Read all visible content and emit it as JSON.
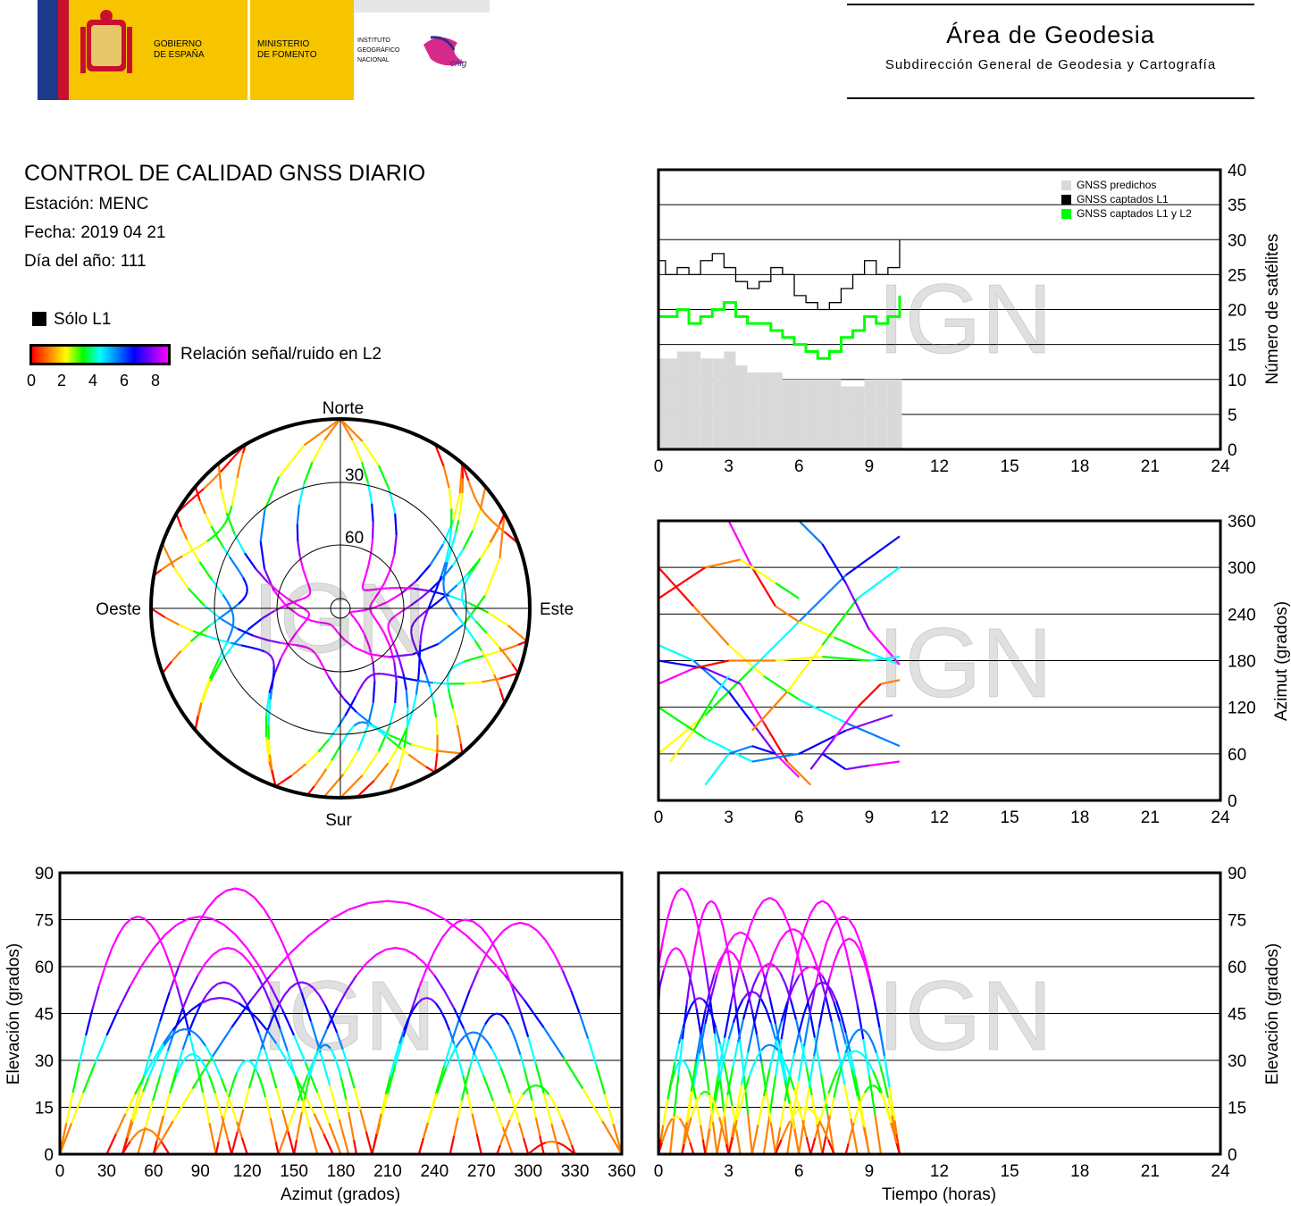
{
  "header": {
    "gov_line1": "GOBIERNO",
    "gov_line2": "DE ESPAÑA",
    "min_line1": "MINISTERIO",
    "min_line2": "DE FOMENTO",
    "ign_line1": "INSTITUTO",
    "ign_line2": "GEOGRÁFICO",
    "ign_line3": "NACIONAL",
    "cnig": "cnig",
    "title": "Área de Geodesia",
    "subtitle": "Subdirección General de Geodesia y Cartografía"
  },
  "info": {
    "title": "CONTROL DE CALIDAD GNSS DIARIO",
    "station": "Estación: MENC",
    "date": "Fecha: 2019 04 21",
    "doy": "Día del año: 111",
    "legend_l1": "Sólo L1",
    "colorbar_label": "Relación señal/ruido en L2",
    "colorbar_ticks": [
      "0",
      "2",
      "4",
      "6",
      "8"
    ]
  },
  "watermark": "IGN",
  "colors": {
    "predicted": "#d9d9d9",
    "l1": "#000000",
    "l1l2": "#00ff00",
    "snr_scale": [
      "#ff0000",
      "#ff8000",
      "#ffff00",
      "#00ff00",
      "#00ffff",
      "#0080ff",
      "#0000ff",
      "#8000ff",
      "#ff00ff"
    ]
  },
  "chart_data": [
    {
      "id": "satellites",
      "type": "line",
      "xlim": [
        0,
        24
      ],
      "ylim": [
        0,
        40
      ],
      "x_ticks": [
        "0",
        "3",
        "6",
        "9",
        "12",
        "15",
        "18",
        "21",
        "24"
      ],
      "y_ticks": [
        "0",
        "5",
        "10",
        "15",
        "20",
        "25",
        "30",
        "35",
        "40"
      ],
      "ylabel": "Número de satélites",
      "legend": [
        "GNSS predichos",
        "GNSS captados L1",
        "GNSS captados L1 y L2"
      ],
      "series": [
        {
          "name": "GNSS predichos",
          "x": [
            0,
            0.3,
            0.8,
            1.3,
            1.8,
            2.3,
            2.8,
            3.3,
            3.8,
            4.3,
            4.8,
            5.3,
            5.8,
            6.3,
            6.8,
            7.3,
            7.8,
            8.3,
            8.8,
            9.3,
            9.8,
            10.3
          ],
          "values": [
            13,
            13,
            14,
            14,
            13,
            13,
            14,
            12,
            11,
            11,
            11,
            10,
            10,
            10,
            10,
            10,
            9,
            9,
            10,
            10,
            10,
            10
          ]
        },
        {
          "name": "GNSS captados L1",
          "x": [
            0,
            0.3,
            0.8,
            1.3,
            1.8,
            2.3,
            2.8,
            3.3,
            3.8,
            4.3,
            4.8,
            5.3,
            5.8,
            6.3,
            6.8,
            7.3,
            7.8,
            8.3,
            8.8,
            9.3,
            9.8,
            10.3
          ],
          "values": [
            27,
            25,
            26,
            25,
            27,
            28,
            26,
            24,
            23,
            24,
            26,
            25,
            22,
            21,
            20,
            21,
            23,
            25,
            27,
            25,
            26,
            30
          ]
        },
        {
          "name": "GNSS captados L1 y L2",
          "x": [
            0,
            0.3,
            0.8,
            1.3,
            1.8,
            2.3,
            2.8,
            3.3,
            3.8,
            4.3,
            4.8,
            5.3,
            5.8,
            6.3,
            6.8,
            7.3,
            7.8,
            8.3,
            8.8,
            9.3,
            9.8,
            10.3
          ],
          "values": [
            19,
            19,
            20,
            18,
            19,
            20,
            21,
            19,
            18,
            18,
            17,
            16,
            15,
            14,
            13,
            14,
            16,
            17,
            19,
            18,
            19,
            22
          ]
        }
      ]
    },
    {
      "id": "skyplot",
      "type": "scatter",
      "rings": [
        "30",
        "60"
      ],
      "directions": {
        "north": "Norte",
        "south": "Sur",
        "east": "Este",
        "west": "Oeste"
      }
    },
    {
      "id": "azimuth_time",
      "type": "scatter",
      "xlim": [
        0,
        24
      ],
      "ylim": [
        0,
        360
      ],
      "x_ticks": [
        "0",
        "3",
        "6",
        "9",
        "12",
        "15",
        "18",
        "21",
        "24"
      ],
      "y_ticks": [
        "0",
        "60",
        "120",
        "180",
        "240",
        "300",
        "360"
      ],
      "ylabel": "Azimut (grados)"
    },
    {
      "id": "elevation_azimuth",
      "type": "scatter",
      "xlim": [
        0,
        360
      ],
      "ylim": [
        0,
        90
      ],
      "x_ticks": [
        "0",
        "30",
        "60",
        "90",
        "120",
        "150",
        "180",
        "210",
        "240",
        "270",
        "300",
        "330",
        "360"
      ],
      "y_ticks": [
        "0",
        "15",
        "30",
        "45",
        "60",
        "75",
        "90"
      ],
      "xlabel": "Azimut (grados)",
      "ylabel": "Elevación (grados)"
    },
    {
      "id": "elevation_time",
      "type": "scatter",
      "xlim": [
        0,
        24
      ],
      "ylim": [
        0,
        90
      ],
      "x_ticks": [
        "0",
        "3",
        "6",
        "9",
        "12",
        "15",
        "18",
        "21",
        "24"
      ],
      "y_ticks": [
        "0",
        "15",
        "30",
        "45",
        "60",
        "75",
        "90"
      ],
      "xlabel": "Tiempo (horas)",
      "ylabel": "Elevación (grados)"
    }
  ]
}
